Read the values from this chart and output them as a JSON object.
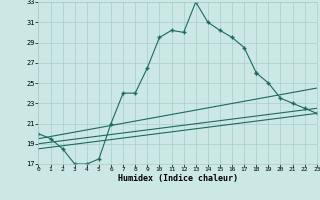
{
  "xlabel": "Humidex (Indice chaleur)",
  "bg_color": "#cce8e5",
  "grid_color": "#a8ceca",
  "line_color": "#1a6b5a",
  "xlim": [
    0,
    23
  ],
  "ylim": [
    17,
    33
  ],
  "xticks": [
    0,
    1,
    2,
    3,
    4,
    5,
    6,
    7,
    8,
    9,
    10,
    11,
    12,
    13,
    14,
    15,
    16,
    17,
    18,
    19,
    20,
    21,
    22,
    23
  ],
  "yticks": [
    17,
    19,
    21,
    23,
    25,
    27,
    29,
    31,
    33
  ],
  "curve1_x": [
    0,
    1,
    2,
    3,
    4,
    5,
    6,
    7,
    8,
    9,
    10,
    11,
    12,
    13,
    14,
    15,
    16,
    17,
    18
  ],
  "curve1_y": [
    20,
    19.5,
    18.5,
    17,
    17,
    17.5,
    21,
    24,
    24,
    26.5,
    29.5,
    30.2,
    30,
    33,
    31,
    30.2,
    29.5,
    28.5,
    26
  ],
  "curve2_x": [
    18,
    19,
    20,
    21,
    22,
    23
  ],
  "curve2_y": [
    26,
    25,
    23.5,
    23,
    22.5,
    22
  ],
  "line1_x": [
    0,
    23
  ],
  "line1_y": [
    19.5,
    24.5
  ],
  "line2_x": [
    0,
    23
  ],
  "line2_y": [
    19.0,
    22.5
  ],
  "line3_x": [
    0,
    23
  ],
  "line3_y": [
    18.5,
    22.0
  ]
}
